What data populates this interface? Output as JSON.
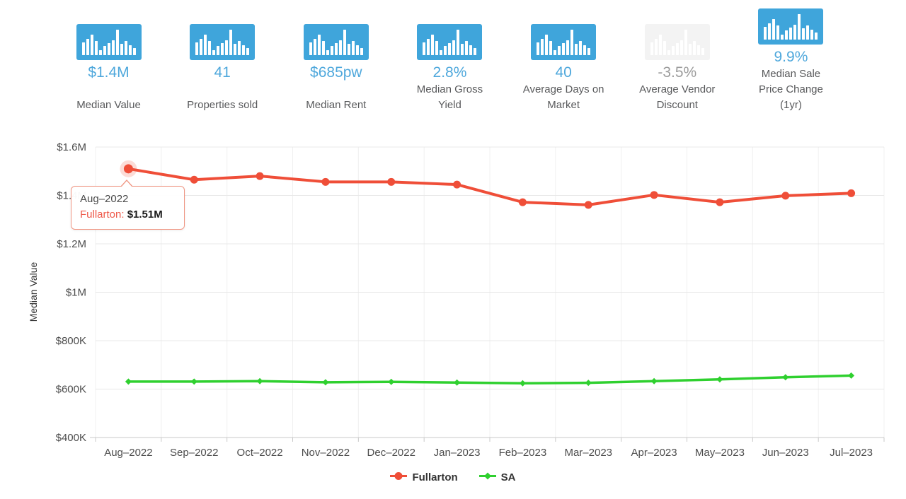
{
  "colors": {
    "accent_blue": "#3FA5DB",
    "value_text_blue": "#4FA8DC",
    "disabled_icon": "#F3F3F3",
    "disabled_text": "#9C9C9C",
    "fullarton_red": "#EF4E38",
    "sa_green": "#2FD02F"
  },
  "stats": {
    "items": [
      {
        "value": "$1.4M",
        "label": "Median Value",
        "disabled": false
      },
      {
        "value": "41",
        "label": "Properties sold",
        "disabled": false
      },
      {
        "value": "$685pw",
        "label": "Median Rent",
        "disabled": false
      },
      {
        "value": "2.8%",
        "label": "Median Gross Yield",
        "disabled": false
      },
      {
        "value": "40",
        "label": "Average Days on Market",
        "disabled": false
      },
      {
        "value": "-3.5%",
        "label": "Average Vendor Discount",
        "disabled": true
      },
      {
        "value": "9.9%",
        "label": "Median Sale Price Change (1yr)",
        "disabled": false
      }
    ]
  },
  "tooltip": {
    "date": "Aug–2022",
    "series_label": "Fullarton:",
    "value": "$1.51M"
  },
  "chart_data": {
    "type": "line",
    "title": "",
    "xlabel": "",
    "ylabel": "Median Value",
    "grid": true,
    "legend_position": "bottom",
    "categories": [
      "Aug–2022",
      "Sep–2022",
      "Oct–2022",
      "Nov–2022",
      "Dec–2022",
      "Jan–2023",
      "Feb–2023",
      "Mar–2023",
      "Apr–2023",
      "May–2023",
      "Jun–2023",
      "Jul–2023"
    ],
    "ylim": [
      400000,
      1600000
    ],
    "yticks": [
      {
        "value": 400000,
        "label": "$400K"
      },
      {
        "value": 600000,
        "label": "$600K"
      },
      {
        "value": 800000,
        "label": "$800K"
      },
      {
        "value": 1000000,
        "label": "$1M"
      },
      {
        "value": 1200000,
        "label": "$1.2M"
      },
      {
        "value": 1400000,
        "label": "$1.4M"
      },
      {
        "value": 1600000,
        "label": "$1.6M"
      }
    ],
    "series": [
      {
        "name": "Fullarton",
        "color": "#EF4E38",
        "marker": "circle",
        "values": [
          1510000,
          1465000,
          1480000,
          1456000,
          1456000,
          1445000,
          1372000,
          1361000,
          1402000,
          1372000,
          1399000,
          1409000
        ]
      },
      {
        "name": "SA",
        "color": "#2FD02F",
        "marker": "diamond",
        "values": [
          631000,
          631000,
          633000,
          628000,
          630000,
          627000,
          624000,
          626000,
          633000,
          640000,
          649000,
          656000
        ]
      }
    ],
    "highlight": {
      "series": 0,
      "index": 0
    }
  }
}
